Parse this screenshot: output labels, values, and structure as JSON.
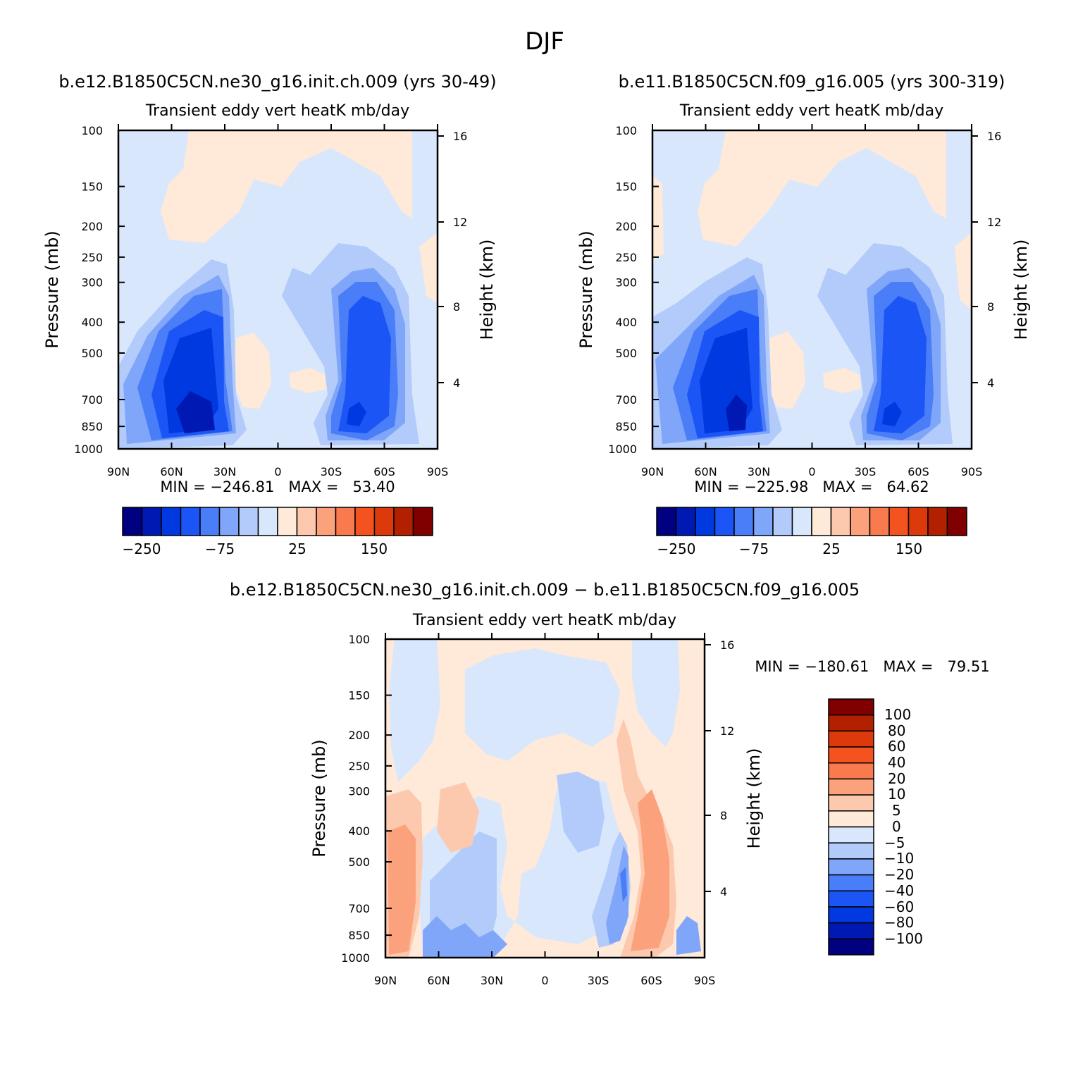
{
  "page_title": "DJF",
  "colors": {
    "top_scale": [
      "#000080",
      "#0019b3",
      "#0039e0",
      "#1b55f5",
      "#4a7df8",
      "#80a6f9",
      "#b3cbfb",
      "#d9e7fd",
      "#ffe9d8",
      "#fdc9ae",
      "#fba27c",
      "#f87a4e",
      "#f4531f",
      "#dd3a0c",
      "#b22000",
      "#800000"
    ],
    "diff_scale": [
      "#000080",
      "#0019b3",
      "#0039e0",
      "#1b55f5",
      "#4a7df8",
      "#80a6f9",
      "#b3cbfb",
      "#d9e7fd",
      "#ffe9d8",
      "#fdc9ae",
      "#fba27c",
      "#f87a4e",
      "#f4531f",
      "#dd3a0c",
      "#b22000",
      "#800000"
    ]
  },
  "panels": [
    {
      "id": "p1",
      "case_title": "b.e12.B1850C5CN.ne30_g16.init.ch.009 (yrs 30-49)",
      "subtitle": "Transient eddy vert heatK mb/day",
      "ylabel": "Pressure (mb)",
      "y2label": "Height (km)",
      "minmax": "MIN = −246.81   MAX =   53.40"
    },
    {
      "id": "p2",
      "case_title": "b.e11.B1850C5CN.f09_g16.005 (yrs 300-319)",
      "subtitle": "Transient eddy vert heatK mb/day",
      "ylabel": "Pressure (mb)",
      "y2label": "Height (km)",
      "minmax": "MIN = −225.98   MAX =   64.62"
    },
    {
      "id": "p3",
      "case_title": "b.e12.B1850C5CN.ne30_g16.init.ch.009 − b.e11.B1850C5CN.f09_g16.005",
      "subtitle": "Transient eddy vert heatK mb/day",
      "ylabel": "Pressure (mb)",
      "y2label": "Height (km)",
      "minmax": "MIN = −180.61   MAX =   79.51"
    }
  ],
  "chart_data": [
    {
      "type": "heatmap",
      "title": "b.e12.B1850C5CN.ne30_g16.init.ch.009 (yrs 30-49)",
      "subtitle": "Transient eddy vert heatK mb/day",
      "ylabel": "Pressure (mb)",
      "y2label": "Height (km)",
      "x_ticks": [
        "90N",
        "60N",
        "30N",
        "0",
        "30S",
        "60S",
        "90S"
      ],
      "y_ticks": [
        100,
        150,
        200,
        250,
        300,
        400,
        500,
        700,
        850,
        1000
      ],
      "y2_ticks": [
        16,
        12,
        8,
        4
      ],
      "log_y": true,
      "ylim": [
        1000,
        100
      ],
      "min": -246.81,
      "max": 53.4,
      "colorbar_labels": [
        "−250",
        "−75",
        "25",
        "150"
      ]
    },
    {
      "type": "heatmap",
      "title": "b.e11.B1850C5CN.f09_g16.005 (yrs 300-319)",
      "subtitle": "Transient eddy vert heatK mb/day",
      "ylabel": "Pressure (mb)",
      "y2label": "Height (km)",
      "x_ticks": [
        "90N",
        "60N",
        "30N",
        "0",
        "30S",
        "60S",
        "90S"
      ],
      "y_ticks": [
        100,
        150,
        200,
        250,
        300,
        400,
        500,
        700,
        850,
        1000
      ],
      "y2_ticks": [
        16,
        12,
        8,
        4
      ],
      "log_y": true,
      "ylim": [
        1000,
        100
      ],
      "min": -225.98,
      "max": 64.62,
      "colorbar_labels": [
        "−250",
        "−75",
        "25",
        "150"
      ]
    },
    {
      "type": "heatmap",
      "title": "b.e12.B1850C5CN.ne30_g16.init.ch.009 − b.e11.B1850C5CN.f09_g16.005",
      "subtitle": "Transient eddy vert heatK mb/day",
      "ylabel": "Pressure (mb)",
      "y2label": "Height (km)",
      "x_ticks": [
        "90N",
        "60N",
        "30N",
        "0",
        "30S",
        "60S",
        "90S"
      ],
      "y_ticks": [
        100,
        150,
        200,
        250,
        300,
        400,
        500,
        700,
        850,
        1000
      ],
      "y2_ticks": [
        16,
        12,
        8,
        4
      ],
      "log_y": true,
      "ylim": [
        1000,
        100
      ],
      "min": -180.61,
      "max": 79.51,
      "colorbar_labels": [
        "100",
        "80",
        "60",
        "40",
        "20",
        "10",
        "5",
        "0",
        "−5",
        "−10",
        "−20",
        "−40",
        "−60",
        "−80",
        "−100"
      ]
    }
  ]
}
